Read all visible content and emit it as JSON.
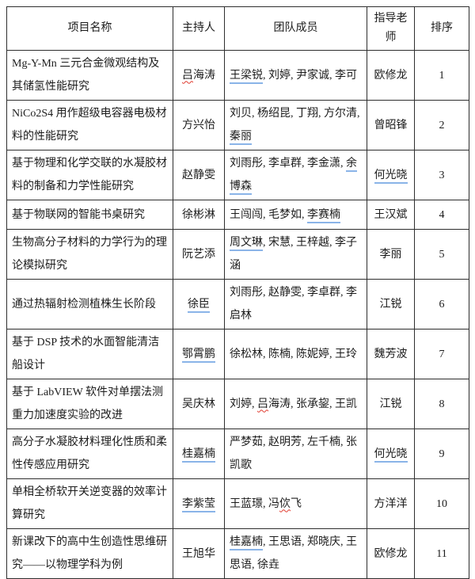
{
  "table": {
    "columns": [
      "项目名称",
      "主持人",
      "团队成员",
      "指导老师",
      "排序"
    ],
    "colors": {
      "blue_underline": "#8ab4e8",
      "red_squiggle": "#e03a2f",
      "border": "#2e2e2e"
    },
    "rows": [
      {
        "project": [
          {
            "t": "Mg-Y-Mn 三元合金微观结构及其储氢性能研究"
          }
        ],
        "host": [
          {
            "t": "吕",
            "m": "red"
          },
          {
            "t": "海涛"
          }
        ],
        "members": [
          {
            "t": "王梁锐",
            "m": "blue"
          },
          {
            "t": ", 刘婷, 尹家诚, 李可"
          }
        ],
        "advisor": [
          {
            "t": "欧修龙"
          }
        ],
        "order": [
          {
            "t": "1"
          }
        ]
      },
      {
        "project": [
          {
            "t": "NiCo2S4 用作超级电容器电极材料的性能研究"
          }
        ],
        "host": [
          {
            "t": "方兴怡"
          }
        ],
        "members": [
          {
            "t": "刘贝, 杨绍昆, 丁翔, 方尔清, "
          },
          {
            "t": "秦丽",
            "m": "blue"
          }
        ],
        "advisor": [
          {
            "t": "曾昭锋"
          }
        ],
        "order": [
          {
            "t": "2"
          }
        ]
      },
      {
        "project": [
          {
            "t": "基于物理和化学交联的水凝胶材料的制备和力学性能研究"
          }
        ],
        "host": [
          {
            "t": "赵静雯"
          }
        ],
        "members": [
          {
            "t": "刘雨彤, 李卓群, 李金潇, "
          },
          {
            "t": "余博森",
            "m": "blue"
          }
        ],
        "advisor": [
          {
            "t": "何光晓",
            "m": "blue"
          }
        ],
        "order": [
          {
            "t": "3"
          }
        ]
      },
      {
        "project": [
          {
            "t": "基于物联网的智能书桌研究"
          }
        ],
        "host": [
          {
            "t": "徐彬淋"
          }
        ],
        "members": [
          {
            "t": "王闯闯, 毛梦如, "
          },
          {
            "t": "李赛楠",
            "m": "blue"
          }
        ],
        "advisor": [
          {
            "t": "王汉斌"
          }
        ],
        "order": [
          {
            "t": "4"
          }
        ]
      },
      {
        "project": [
          {
            "t": "生物高分子材料的力学行为的理论模拟研究"
          }
        ],
        "host": [
          {
            "t": "阮艺添"
          }
        ],
        "members": [
          {
            "t": "周文琳",
            "m": "blue"
          },
          {
            "t": ", 宋慧, 王梓越, 李子涵"
          }
        ],
        "advisor": [
          {
            "t": "李丽"
          }
        ],
        "order": [
          {
            "t": "5"
          }
        ]
      },
      {
        "project": [
          {
            "t": "通过热辐射检测植株生长阶段"
          }
        ],
        "host": [
          {
            "t": "徐臣",
            "m": "blue"
          }
        ],
        "members": [
          {
            "t": "刘雨彤, 赵静雯, 李卓群, 李启林"
          }
        ],
        "advisor": [
          {
            "t": "江锐"
          }
        ],
        "order": [
          {
            "t": "6"
          }
        ]
      },
      {
        "project": [
          {
            "t": "基于 DSP 技术的水面智能清洁船设计"
          }
        ],
        "host": [
          {
            "t": "鄂霄鹏",
            "m": "blue"
          }
        ],
        "members": [
          {
            "t": "徐松林, 陈楠, 陈妮婷, 王玲"
          }
        ],
        "advisor": [
          {
            "t": "魏芳波"
          }
        ],
        "order": [
          {
            "t": "7"
          }
        ]
      },
      {
        "project": [
          {
            "t": "基于 LabVIEW 软件对单摆法测重力加速度实验的改进"
          }
        ],
        "host": [
          {
            "t": "吴庆林"
          }
        ],
        "members": [
          {
            "t": "刘婷, "
          },
          {
            "t": "吕",
            "m": "red"
          },
          {
            "t": "海涛, 张承鋆, 王凯"
          }
        ],
        "advisor": [
          {
            "t": "江锐"
          }
        ],
        "order": [
          {
            "t": "8"
          }
        ]
      },
      {
        "project": [
          {
            "t": "高分子水凝胶材料理化性质和柔性传感应用研究"
          }
        ],
        "host": [
          {
            "t": "桂嘉楠",
            "m": "blue"
          }
        ],
        "members": [
          {
            "t": "严梦茹, 赵明芳, 左千楠, 张凯歌"
          }
        ],
        "advisor": [
          {
            "t": "何光晓",
            "m": "blue"
          }
        ],
        "order": [
          {
            "t": "9"
          }
        ]
      },
      {
        "project": [
          {
            "t": "单相全桥软开关逆变器的效率计算研究"
          }
        ],
        "host": [
          {
            "t": "李紫莹",
            "m": "blue"
          }
        ],
        "members": [
          {
            "t": "王蓝璟, 冯"
          },
          {
            "t": "佽",
            "m": "red"
          },
          {
            "t": "飞"
          }
        ],
        "advisor": [
          {
            "t": "方洋洋"
          }
        ],
        "order": [
          {
            "t": "10"
          }
        ]
      },
      {
        "project": [
          {
            "t": "新课改下的高中生创造性思维研究——以物理学科为例"
          }
        ],
        "host": [
          {
            "t": "王旭华"
          }
        ],
        "members": [
          {
            "t": "桂嘉楠",
            "m": "blue"
          },
          {
            "t": ", 王思语, 郑晓庆, 王思语, 徐垚"
          }
        ],
        "advisor": [
          {
            "t": "欧修龙"
          }
        ],
        "order": [
          {
            "t": "11"
          }
        ]
      }
    ]
  }
}
